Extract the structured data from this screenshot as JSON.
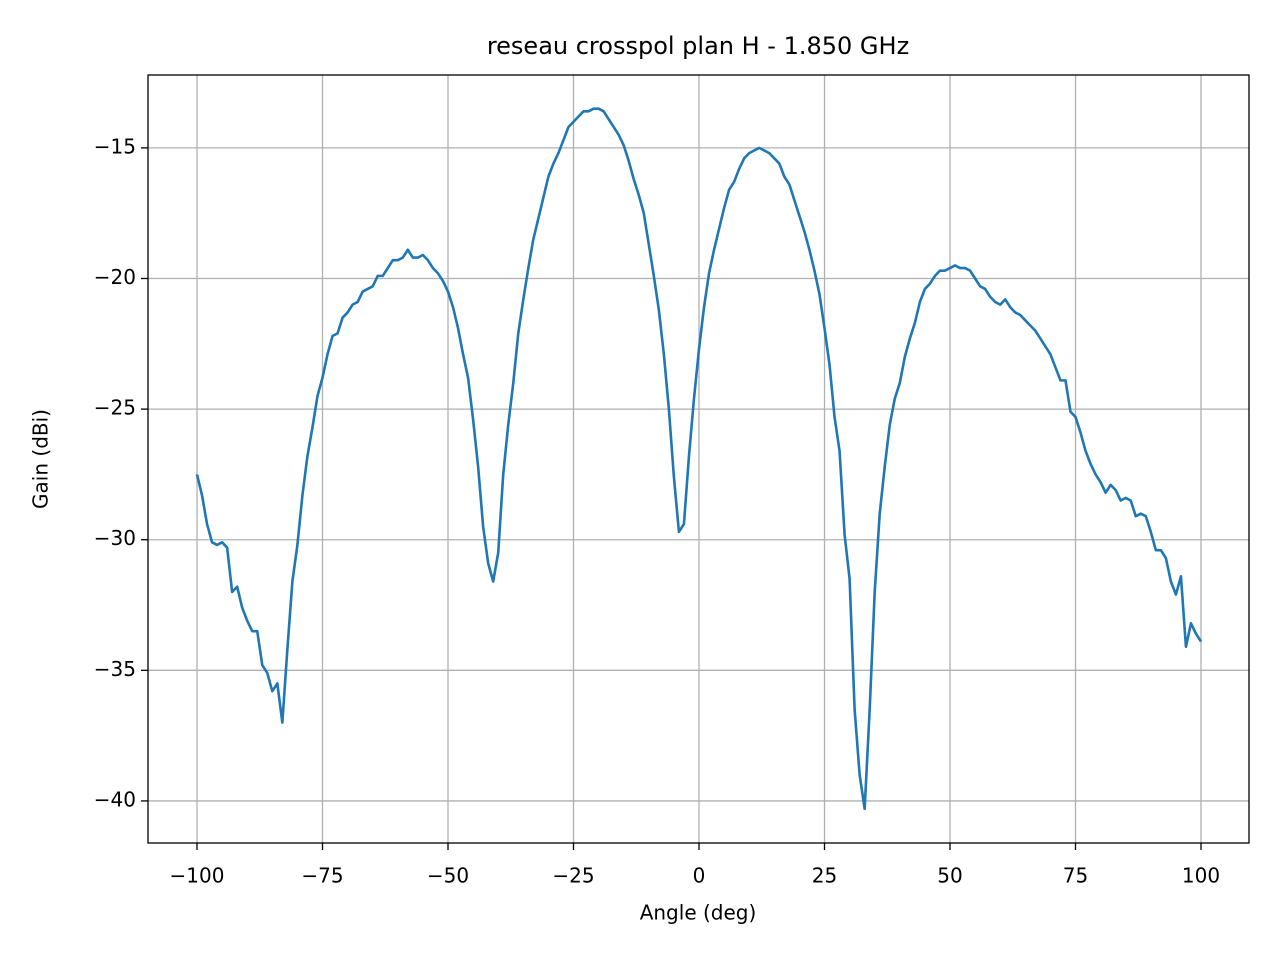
{
  "chart_data": {
    "type": "line",
    "title": "reseau crosspol plan H - 1.850 GHz",
    "x_label": "Angle (deg)",
    "y_label": "Gain (dBi)",
    "x": [
      -100,
      -99,
      -98,
      -97,
      -96,
      -95,
      -94,
      -93,
      -92,
      -91,
      -90,
      -89,
      -88,
      -87,
      -86,
      -85,
      -84,
      -83,
      -82,
      -81,
      -80,
      -79,
      -78,
      -77,
      -76,
      -75,
      -74,
      -73,
      -72,
      -71,
      -70,
      -69,
      -68,
      -67,
      -66,
      -65,
      -64,
      -63,
      -62,
      -61,
      -60,
      -59,
      -58,
      -57,
      -56,
      -55,
      -54,
      -53,
      -52,
      -51,
      -50,
      -49,
      -48,
      -47,
      -46,
      -45,
      -44,
      -43,
      -42,
      -41,
      -40,
      -39,
      -38,
      -37,
      -36,
      -35,
      -34,
      -33,
      -32,
      -31,
      -30,
      -29,
      -28,
      -27,
      -26,
      -25,
      -24,
      -23,
      -22,
      -21,
      -20,
      -19,
      -18,
      -17,
      -16,
      -15,
      -14,
      -13,
      -12,
      -11,
      -10,
      -9,
      -8,
      -7,
      -6,
      -5,
      -4,
      -3,
      -2,
      -1,
      0,
      1,
      2,
      3,
      4,
      5,
      6,
      7,
      8,
      9,
      10,
      11,
      12,
      13,
      14,
      15,
      16,
      17,
      18,
      19,
      20,
      21,
      22,
      23,
      24,
      25,
      26,
      27,
      28,
      29,
      30,
      31,
      32,
      33,
      34,
      35,
      36,
      37,
      38,
      39,
      40,
      41,
      42,
      43,
      44,
      45,
      46,
      47,
      48,
      49,
      50,
      51,
      52,
      53,
      54,
      55,
      56,
      57,
      58,
      59,
      60,
      61,
      62,
      63,
      64,
      65,
      66,
      67,
      68,
      69,
      70,
      71,
      72,
      73,
      74,
      75,
      76,
      77,
      78,
      79,
      80,
      81,
      82,
      83,
      84,
      85,
      86,
      87,
      88,
      89,
      90,
      91,
      92,
      93,
      94,
      95,
      96,
      97,
      98,
      99,
      100
    ],
    "series": [
      {
        "name": "gain",
        "color": "#1f77b4",
        "values": [
          -27.5,
          -28.3,
          -29.4,
          -30.1,
          -30.2,
          -30.1,
          -30.3,
          -32.0,
          -31.8,
          -32.6,
          -33.1,
          -33.5,
          -33.5,
          -34.8,
          -35.1,
          -35.8,
          -35.5,
          -37.0,
          -34.2,
          -31.6,
          -30.2,
          -28.3,
          -26.8,
          -25.7,
          -24.5,
          -23.8,
          -22.9,
          -22.2,
          -22.1,
          -21.5,
          -21.3,
          -21.0,
          -20.9,
          -20.5,
          -20.4,
          -20.3,
          -19.9,
          -19.9,
          -19.6,
          -19.3,
          -19.3,
          -19.2,
          -18.9,
          -19.2,
          -19.2,
          -19.1,
          -19.3,
          -19.6,
          -19.8,
          -20.1,
          -20.5,
          -21.1,
          -21.9,
          -22.9,
          -23.8,
          -25.4,
          -27.2,
          -29.5,
          -30.9,
          -31.6,
          -30.5,
          -27.5,
          -25.6,
          -24.0,
          -22.1,
          -20.8,
          -19.6,
          -18.5,
          -17.7,
          -16.9,
          -16.1,
          -15.6,
          -15.2,
          -14.7,
          -14.2,
          -14.0,
          -13.8,
          -13.6,
          -13.6,
          -13.5,
          -13.5,
          -13.6,
          -13.9,
          -14.2,
          -14.5,
          -14.9,
          -15.5,
          -16.2,
          -16.8,
          -17.5,
          -18.7,
          -19.9,
          -21.2,
          -22.9,
          -25.0,
          -27.6,
          -29.7,
          -29.4,
          -26.8,
          -24.6,
          -22.7,
          -21.1,
          -19.8,
          -18.9,
          -18.1,
          -17.3,
          -16.6,
          -16.3,
          -15.8,
          -15.4,
          -15.2,
          -15.1,
          -15.0,
          -15.1,
          -15.2,
          -15.4,
          -15.6,
          -16.1,
          -16.4,
          -17.0,
          -17.6,
          -18.2,
          -18.9,
          -19.7,
          -20.6,
          -21.9,
          -23.3,
          -25.3,
          -26.6,
          -29.8,
          -31.5,
          -36.5,
          -39.0,
          -40.3,
          -36.5,
          -32.0,
          -29.0,
          -27.2,
          -25.6,
          -24.6,
          -24.0,
          -23.0,
          -22.3,
          -21.7,
          -20.9,
          -20.4,
          -20.2,
          -19.9,
          -19.7,
          -19.7,
          -19.6,
          -19.5,
          -19.6,
          -19.6,
          -19.7,
          -20.0,
          -20.3,
          -20.4,
          -20.7,
          -20.9,
          -21.0,
          -20.8,
          -21.1,
          -21.3,
          -21.4,
          -21.6,
          -21.8,
          -22.0,
          -22.3,
          -22.6,
          -22.9,
          -23.4,
          -23.9,
          -23.9,
          -25.1,
          -25.3,
          -25.9,
          -26.6,
          -27.1,
          -27.5,
          -27.8,
          -28.2,
          -27.9,
          -28.1,
          -28.5,
          -28.4,
          -28.5,
          -29.1,
          -29.0,
          -29.1,
          -29.7,
          -30.4,
          -30.4,
          -30.7,
          -31.6,
          -32.1,
          -31.4,
          -34.1,
          -33.2,
          -33.6,
          -33.9
        ]
      }
    ],
    "xlim": [
      -109.76,
      109.56
    ],
    "ylim": [
      -41.61,
      -12.21
    ],
    "xticks": [
      {
        "value": -100,
        "label": "−100"
      },
      {
        "value": -75,
        "label": "−75"
      },
      {
        "value": -50,
        "label": "−50"
      },
      {
        "value": -25,
        "label": "−25"
      },
      0,
      25,
      50,
      75,
      100
    ],
    "yticks": [
      {
        "value": -15,
        "label": "−15"
      },
      {
        "value": -20,
        "label": "−20"
      },
      {
        "value": -25,
        "label": "−25"
      },
      {
        "value": -30,
        "label": "−30"
      },
      {
        "value": -35,
        "label": "−35"
      },
      {
        "value": -40,
        "label": "−40"
      }
    ],
    "grid": true
  }
}
